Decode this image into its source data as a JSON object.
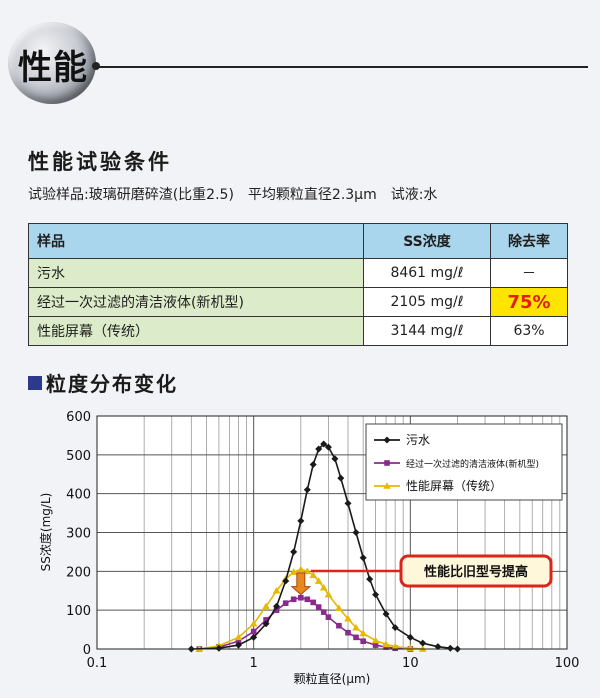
{
  "header": {
    "title": "性能"
  },
  "test_conditions": {
    "title": "性能试验条件",
    "sample": "试验样品:玻璃研磨碎渣(比重2.5)",
    "particle": "平均颗粒直径2.3μm",
    "liquid": "试液:水"
  },
  "table": {
    "headers": [
      "样品",
      "SS浓度",
      "除去率"
    ],
    "rows": [
      [
        "污水",
        "8461 mg/ℓ",
        "－"
      ],
      [
        "经过一次过滤的清洁液体(新机型)",
        "2105 mg/ℓ",
        "75%"
      ],
      [
        "性能屏幕（传统）",
        "3144 mg/ℓ",
        "63%"
      ]
    ]
  },
  "section2": {
    "title": "粒度分布变化"
  },
  "chart_data": {
    "type": "line",
    "xlabel": "颗粒直径(μm)",
    "ylabel": "SS浓度(mg/L)",
    "x_scale": "log",
    "xlim": [
      0.1,
      100
    ],
    "ylim": [
      0,
      600
    ],
    "x_ticks": [
      "0.1",
      "1",
      "10",
      "100"
    ],
    "y_ticks": [
      "0",
      "100",
      "200",
      "300",
      "400",
      "500",
      "600"
    ],
    "grid": true,
    "legend_position": "top-right",
    "annotation": "性能比旧型号提高",
    "series": [
      {
        "name": "污水",
        "color": "#1a1a1a",
        "marker": "diamond",
        "points": [
          [
            0.4,
            0
          ],
          [
            0.6,
            2
          ],
          [
            0.8,
            10
          ],
          [
            1.0,
            30
          ],
          [
            1.2,
            65
          ],
          [
            1.4,
            110
          ],
          [
            1.6,
            175
          ],
          [
            1.8,
            250
          ],
          [
            2.0,
            330
          ],
          [
            2.2,
            410
          ],
          [
            2.4,
            475
          ],
          [
            2.6,
            515
          ],
          [
            2.8,
            528
          ],
          [
            3.0,
            520
          ],
          [
            3.3,
            490
          ],
          [
            3.6,
            440
          ],
          [
            4.0,
            375
          ],
          [
            4.5,
            300
          ],
          [
            5.0,
            235
          ],
          [
            5.5,
            180
          ],
          [
            6.0,
            140
          ],
          [
            7.0,
            90
          ],
          [
            8.0,
            55
          ],
          [
            10.0,
            30
          ],
          [
            12.0,
            15
          ],
          [
            15.0,
            6
          ],
          [
            18.0,
            2
          ],
          [
            20.0,
            0
          ]
        ]
      },
      {
        "name": "经过一次过滤的清洁液体(新机型)",
        "color": "#8b2a8e",
        "marker": "square",
        "points": [
          [
            0.45,
            0
          ],
          [
            0.6,
            5
          ],
          [
            0.8,
            20
          ],
          [
            1.0,
            45
          ],
          [
            1.2,
            75
          ],
          [
            1.4,
            100
          ],
          [
            1.6,
            118
          ],
          [
            1.8,
            128
          ],
          [
            2.0,
            132
          ],
          [
            2.2,
            128
          ],
          [
            2.4,
            120
          ],
          [
            2.6,
            108
          ],
          [
            2.8,
            95
          ],
          [
            3.0,
            82
          ],
          [
            3.5,
            60
          ],
          [
            4.0,
            42
          ],
          [
            4.5,
            30
          ],
          [
            5.0,
            20
          ],
          [
            6.0,
            10
          ],
          [
            7.0,
            5
          ],
          [
            8.0,
            2
          ],
          [
            10.0,
            0
          ]
        ]
      },
      {
        "name": "性能屏幕（传统）",
        "color": "#e6b800",
        "marker": "triangle",
        "points": [
          [
            0.45,
            0
          ],
          [
            0.6,
            8
          ],
          [
            0.8,
            30
          ],
          [
            1.0,
            65
          ],
          [
            1.2,
            110
          ],
          [
            1.4,
            150
          ],
          [
            1.6,
            180
          ],
          [
            1.8,
            198
          ],
          [
            2.0,
            205
          ],
          [
            2.2,
            200
          ],
          [
            2.4,
            190
          ],
          [
            2.6,
            175
          ],
          [
            2.8,
            158
          ],
          [
            3.0,
            140
          ],
          [
            3.5,
            105
          ],
          [
            4.0,
            78
          ],
          [
            4.5,
            55
          ],
          [
            5.0,
            40
          ],
          [
            6.0,
            22
          ],
          [
            7.0,
            12
          ],
          [
            8.0,
            6
          ],
          [
            10.0,
            2
          ],
          [
            12.0,
            0
          ]
        ]
      }
    ]
  }
}
